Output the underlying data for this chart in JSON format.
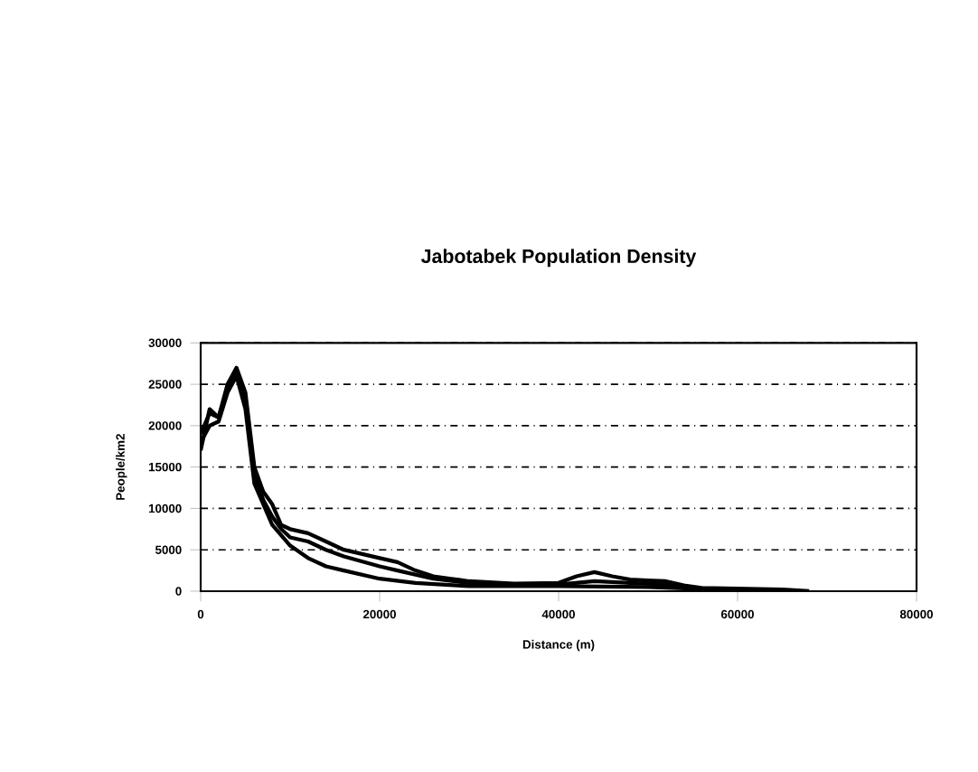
{
  "chart_data": {
    "type": "line",
    "title": "Jabotabek Population Density",
    "xlabel": "Distance (m)",
    "ylabel": "People/km2",
    "xlim": [
      0,
      80000
    ],
    "xticks": [
      0,
      20000,
      40000,
      60000,
      80000
    ],
    "ylim": [
      0,
      30000
    ],
    "yticks": [
      0,
      5000,
      10000,
      15000,
      20000,
      25000,
      30000
    ],
    "grid": "y",
    "marker": "none",
    "line_style": "solid",
    "series": [
      {
        "color": "#000000",
        "x": [
          0,
          1000,
          2000,
          3000,
          4000,
          5000,
          6000,
          7000,
          8000,
          9000,
          10000,
          12000,
          14000,
          16000,
          18000,
          20000,
          22000,
          24000,
          26000,
          28000,
          30000,
          35000,
          40000,
          42000,
          44000,
          46000,
          48000,
          50000,
          52000,
          54000,
          56000,
          60000,
          65000,
          68000
        ],
        "values": [
          17000,
          22000,
          21000,
          25000,
          27000,
          24000,
          15000,
          12000,
          10500,
          8000,
          7500,
          7000,
          6000,
          5000,
          4500,
          4000,
          3500,
          2500,
          1800,
          1500,
          1200,
          900,
          1000,
          1800,
          2300,
          1800,
          1400,
          1300,
          1200,
          700,
          400,
          300,
          200,
          0
        ]
      },
      {
        "color": "#000000",
        "x": [
          0,
          1000,
          2000,
          3000,
          4000,
          5000,
          6000,
          7000,
          8000,
          9000,
          10000,
          12000,
          14000,
          16000,
          18000,
          20000,
          22000,
          24000,
          26000,
          30000,
          35000,
          40000,
          44000,
          48000,
          52000,
          56000,
          60000,
          66000
        ],
        "values": [
          19000,
          21500,
          21000,
          24500,
          26500,
          23000,
          14000,
          11000,
          9000,
          7500,
          6500,
          6000,
          5000,
          4200,
          3600,
          3000,
          2500,
          2000,
          1500,
          1000,
          800,
          800,
          1200,
          1000,
          800,
          300,
          200,
          0
        ]
      },
      {
        "color": "#000000",
        "x": [
          0,
          1000,
          2000,
          3000,
          4000,
          5000,
          6000,
          8000,
          10000,
          12000,
          14000,
          16000,
          18000,
          20000,
          24000,
          30000,
          40000,
          50000,
          60000,
          64000
        ],
        "values": [
          18000,
          20000,
          20500,
          24000,
          26000,
          22000,
          13000,
          8000,
          5500,
          4000,
          3000,
          2500,
          2000,
          1500,
          1000,
          600,
          600,
          500,
          100,
          0
        ]
      }
    ]
  }
}
